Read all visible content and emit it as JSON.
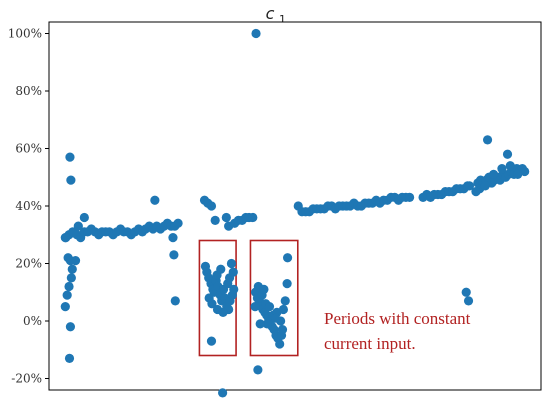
{
  "chart_data": {
    "type": "scatter",
    "title": "c",
    "title_subscript": "1",
    "xlabel": "",
    "ylabel": "",
    "ylim": [
      -24,
      104
    ],
    "xlim": [
      0,
      100
    ],
    "y_ticks": [
      -20,
      0,
      20,
      40,
      60,
      80,
      100
    ],
    "y_tick_labels": [
      "-20%",
      "0%",
      "20%",
      "40%",
      "60%",
      "80%",
      "100%"
    ],
    "grid": false,
    "marker_color": "#1f77b4",
    "annotation_color": "#b22222",
    "annotations": [
      "Periods with constant",
      "current input."
    ],
    "highlight_boxes": [
      {
        "x_range": [
          29.4,
          37.3
        ],
        "y_range": [
          -12,
          28
        ]
      },
      {
        "x_range": [
          40.4,
          50.6
        ],
        "y_range": [
          -12,
          28
        ]
      }
    ],
    "series": [
      {
        "values": [
          {
            "x": 0.5,
            "y": 29
          },
          {
            "x": 1.3,
            "y": 30
          },
          {
            "x": 2.1,
            "y": 31
          },
          {
            "x": 3.0,
            "y": 30
          },
          {
            "x": 3.8,
            "y": 29
          },
          {
            "x": 4.6,
            "y": 31
          },
          {
            "x": 5.3,
            "y": 31
          },
          {
            "x": 6.1,
            "y": 32
          },
          {
            "x": 6.9,
            "y": 31
          },
          {
            "x": 7.7,
            "y": 30
          },
          {
            "x": 8.4,
            "y": 31
          },
          {
            "x": 9.2,
            "y": 31
          },
          {
            "x": 10.0,
            "y": 31
          },
          {
            "x": 10.8,
            "y": 30
          },
          {
            "x": 11.6,
            "y": 31
          },
          {
            "x": 12.4,
            "y": 32
          },
          {
            "x": 13.1,
            "y": 31
          },
          {
            "x": 13.9,
            "y": 31
          },
          {
            "x": 14.7,
            "y": 30
          },
          {
            "x": 15.5,
            "y": 31
          },
          {
            "x": 16.3,
            "y": 32
          },
          {
            "x": 17.1,
            "y": 31
          },
          {
            "x": 17.8,
            "y": 32
          },
          {
            "x": 18.6,
            "y": 33
          },
          {
            "x": 19.4,
            "y": 32
          },
          {
            "x": 20.2,
            "y": 33
          },
          {
            "x": 21.0,
            "y": 32
          },
          {
            "x": 21.8,
            "y": 33
          },
          {
            "x": 22.5,
            "y": 34
          },
          {
            "x": 23.3,
            "y": 33
          },
          {
            "x": 24.1,
            "y": 33
          },
          {
            "x": 24.8,
            "y": 34
          },
          {
            "x": 1.5,
            "y": 57
          },
          {
            "x": 1.7,
            "y": 49
          },
          {
            "x": 0.6,
            "y": 29
          },
          {
            "x": 1.1,
            "y": 22
          },
          {
            "x": 1.6,
            "y": 21
          },
          {
            "x": 2.0,
            "y": 18
          },
          {
            "x": 1.8,
            "y": 15
          },
          {
            "x": 1.3,
            "y": 12
          },
          {
            "x": 0.9,
            "y": 9
          },
          {
            "x": 0.5,
            "y": 5
          },
          {
            "x": 1.6,
            "y": -2
          },
          {
            "x": 1.4,
            "y": -13
          },
          {
            "x": 2.7,
            "y": 21
          },
          {
            "x": 3.3,
            "y": 33
          },
          {
            "x": 4.6,
            "y": 36
          },
          {
            "x": 19.8,
            "y": 42
          },
          {
            "x": 23.7,
            "y": 29
          },
          {
            "x": 23.9,
            "y": 23
          },
          {
            "x": 24.2,
            "y": 7
          },
          {
            "x": 30.5,
            "y": 42
          },
          {
            "x": 31.2,
            "y": 41
          },
          {
            "x": 32.0,
            "y": 40
          },
          {
            "x": 32.8,
            "y": 35
          },
          {
            "x": 35.2,
            "y": 36
          },
          {
            "x": 35.7,
            "y": 33
          },
          {
            "x": 37.0,
            "y": 34
          },
          {
            "x": 37.8,
            "y": 35
          },
          {
            "x": 38.6,
            "y": 35
          },
          {
            "x": 39.4,
            "y": 36
          },
          {
            "x": 40.1,
            "y": 36
          },
          {
            "x": 40.9,
            "y": 36
          },
          {
            "x": 30.7,
            "y": 19
          },
          {
            "x": 31.0,
            "y": 17
          },
          {
            "x": 31.4,
            "y": 15
          },
          {
            "x": 31.9,
            "y": 13
          },
          {
            "x": 32.3,
            "y": 11
          },
          {
            "x": 32.6,
            "y": 10
          },
          {
            "x": 33.0,
            "y": 14
          },
          {
            "x": 33.4,
            "y": 12
          },
          {
            "x": 33.9,
            "y": 9
          },
          {
            "x": 34.2,
            "y": 7
          },
          {
            "x": 34.6,
            "y": 11
          },
          {
            "x": 34.9,
            "y": 8
          },
          {
            "x": 35.3,
            "y": 5
          },
          {
            "x": 35.7,
            "y": 4
          },
          {
            "x": 36.0,
            "y": 7
          },
          {
            "x": 36.5,
            "y": 9
          },
          {
            "x": 36.8,
            "y": 11
          },
          {
            "x": 32.1,
            "y": 6
          },
          {
            "x": 33.3,
            "y": 4
          },
          {
            "x": 34.5,
            "y": 3
          },
          {
            "x": 35.5,
            "y": 13
          },
          {
            "x": 36.3,
            "y": 20
          },
          {
            "x": 32.0,
            "y": -7
          },
          {
            "x": 33.2,
            "y": 16
          },
          {
            "x": 34.0,
            "y": 18
          },
          {
            "x": 31.5,
            "y": 8
          },
          {
            "x": 35.9,
            "y": 15
          },
          {
            "x": 36.7,
            "y": 17
          },
          {
            "x": 34.4,
            "y": -25
          },
          {
            "x": 41.5,
            "y": 10
          },
          {
            "x": 41.9,
            "y": 8
          },
          {
            "x": 42.3,
            "y": 7
          },
          {
            "x": 42.7,
            "y": 5
          },
          {
            "x": 43.1,
            "y": 4
          },
          {
            "x": 43.5,
            "y": 3
          },
          {
            "x": 43.9,
            "y": 2
          },
          {
            "x": 44.3,
            "y": 1
          },
          {
            "x": 44.7,
            "y": 0
          },
          {
            "x": 45.1,
            "y": -2
          },
          {
            "x": 45.5,
            "y": -3
          },
          {
            "x": 45.9,
            "y": -5
          },
          {
            "x": 46.3,
            "y": -6
          },
          {
            "x": 46.7,
            "y": -8
          },
          {
            "x": 47.1,
            "y": -5
          },
          {
            "x": 42.1,
            "y": 12
          },
          {
            "x": 42.9,
            "y": 9
          },
          {
            "x": 43.7,
            "y": 6
          },
          {
            "x": 44.5,
            "y": 5
          },
          {
            "x": 45.3,
            "y": 2
          },
          {
            "x": 46.1,
            "y": 3
          },
          {
            "x": 46.9,
            "y": 0
          },
          {
            "x": 47.5,
            "y": 4
          },
          {
            "x": 47.9,
            "y": 7
          },
          {
            "x": 48.3,
            "y": 13
          },
          {
            "x": 48.4,
            "y": 22
          },
          {
            "x": 44.0,
            "y": -1
          },
          {
            "x": 45.8,
            "y": 1
          },
          {
            "x": 47.3,
            "y": -3
          },
          {
            "x": 41.4,
            "y": 5
          },
          {
            "x": 42.5,
            "y": -1
          },
          {
            "x": 43.3,
            "y": 11
          },
          {
            "x": 42.0,
            "y": -17
          },
          {
            "x": 41.6,
            "y": 100
          },
          {
            "x": 50.7,
            "y": 40
          },
          {
            "x": 51.5,
            "y": 38
          },
          {
            "x": 52.3,
            "y": 38
          },
          {
            "x": 53.1,
            "y": 38
          },
          {
            "x": 53.9,
            "y": 39
          },
          {
            "x": 54.7,
            "y": 39
          },
          {
            "x": 55.5,
            "y": 39
          },
          {
            "x": 56.3,
            "y": 39
          },
          {
            "x": 57.1,
            "y": 40
          },
          {
            "x": 57.9,
            "y": 40
          },
          {
            "x": 58.7,
            "y": 39
          },
          {
            "x": 59.5,
            "y": 40
          },
          {
            "x": 60.3,
            "y": 40
          },
          {
            "x": 61.1,
            "y": 40
          },
          {
            "x": 61.9,
            "y": 40
          },
          {
            "x": 62.7,
            "y": 41
          },
          {
            "x": 63.5,
            "y": 40
          },
          {
            "x": 64.3,
            "y": 40
          },
          {
            "x": 65.1,
            "y": 41
          },
          {
            "x": 65.9,
            "y": 41
          },
          {
            "x": 66.7,
            "y": 41
          },
          {
            "x": 67.5,
            "y": 42
          },
          {
            "x": 68.3,
            "y": 41
          },
          {
            "x": 69.1,
            "y": 42
          },
          {
            "x": 69.9,
            "y": 42
          },
          {
            "x": 70.7,
            "y": 43
          },
          {
            "x": 71.5,
            "y": 43
          },
          {
            "x": 72.3,
            "y": 42
          },
          {
            "x": 73.1,
            "y": 43
          },
          {
            "x": 73.9,
            "y": 43
          },
          {
            "x": 74.7,
            "y": 43
          },
          {
            "x": 77.6,
            "y": 43
          },
          {
            "x": 78.4,
            "y": 44
          },
          {
            "x": 79.2,
            "y": 43
          },
          {
            "x": 80.0,
            "y": 44
          },
          {
            "x": 80.8,
            "y": 44
          },
          {
            "x": 81.6,
            "y": 44
          },
          {
            "x": 82.4,
            "y": 45
          },
          {
            "x": 83.2,
            "y": 45
          },
          {
            "x": 84.0,
            "y": 45
          },
          {
            "x": 84.8,
            "y": 46
          },
          {
            "x": 85.6,
            "y": 46
          },
          {
            "x": 86.4,
            "y": 46
          },
          {
            "x": 87.2,
            "y": 47
          },
          {
            "x": 87.6,
            "y": 47
          },
          {
            "x": 86.9,
            "y": 10
          },
          {
            "x": 87.4,
            "y": 7
          },
          {
            "x": 89.4,
            "y": 48
          },
          {
            "x": 90.0,
            "y": 49
          },
          {
            "x": 90.6,
            "y": 48
          },
          {
            "x": 91.2,
            "y": 49
          },
          {
            "x": 91.8,
            "y": 50
          },
          {
            "x": 92.4,
            "y": 48
          },
          {
            "x": 93.0,
            "y": 49
          },
          {
            "x": 93.6,
            "y": 50
          },
          {
            "x": 94.2,
            "y": 49
          },
          {
            "x": 94.8,
            "y": 51
          },
          {
            "x": 95.4,
            "y": 50
          },
          {
            "x": 96.0,
            "y": 51
          },
          {
            "x": 96.6,
            "y": 52
          },
          {
            "x": 97.2,
            "y": 51
          },
          {
            "x": 97.8,
            "y": 53
          },
          {
            "x": 98.4,
            "y": 52
          },
          {
            "x": 99.0,
            "y": 53
          },
          {
            "x": 99.5,
            "y": 52
          },
          {
            "x": 89.8,
            "y": 46
          },
          {
            "x": 91.0,
            "y": 47
          },
          {
            "x": 92.8,
            "y": 51
          },
          {
            "x": 94.6,
            "y": 53
          },
          {
            "x": 96.4,
            "y": 54
          },
          {
            "x": 98.0,
            "y": 51
          },
          {
            "x": 89.0,
            "y": 45
          },
          {
            "x": 91.5,
            "y": 63
          },
          {
            "x": 95.8,
            "y": 58
          }
        ]
      }
    ]
  }
}
